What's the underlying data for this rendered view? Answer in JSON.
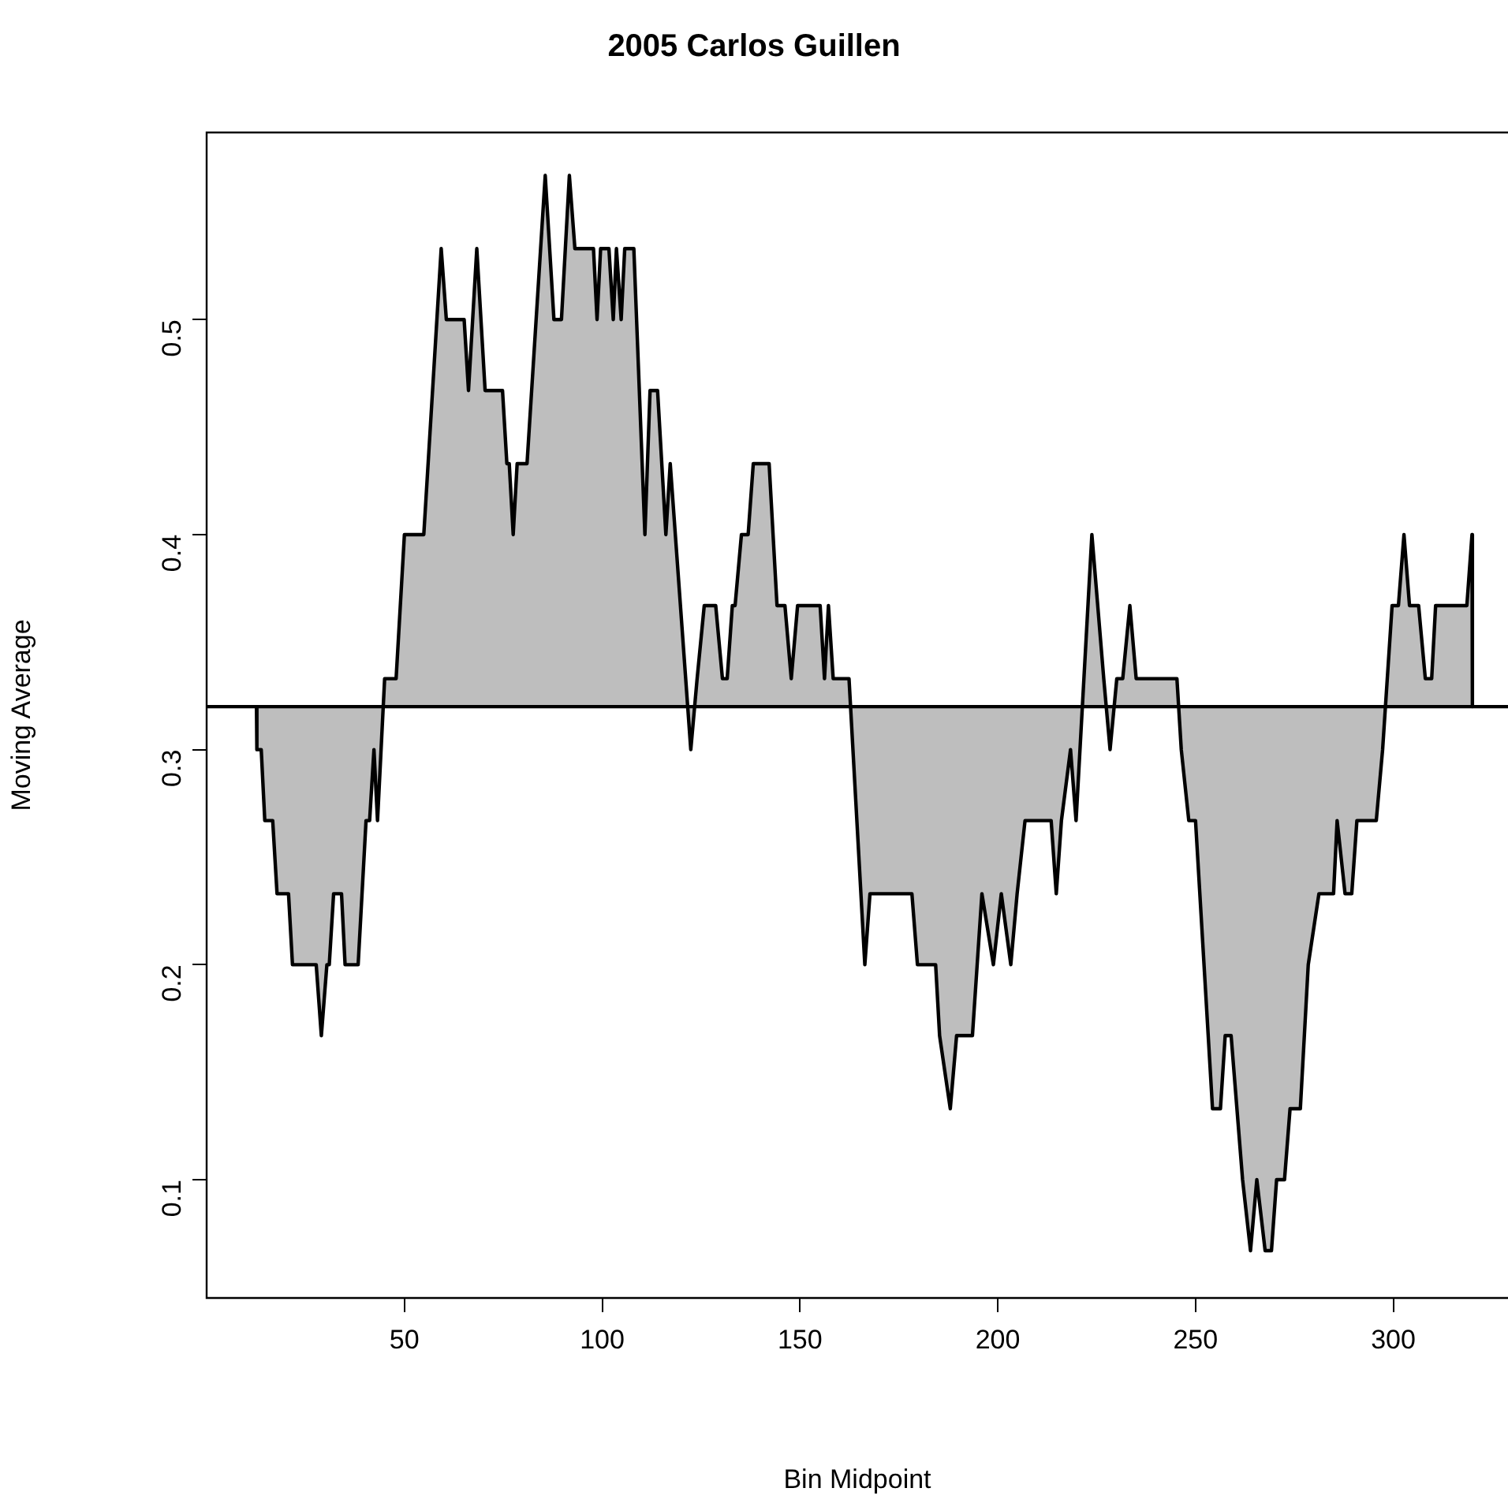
{
  "chart_data": {
    "type": "area",
    "title": "2005 Carlos Guillen",
    "xlabel": "Bin Midpoint",
    "ylabel": "Moving Average",
    "xlim": [
      0,
      329
    ],
    "ylim": [
      0.045,
      0.587
    ],
    "xticks": [
      50,
      100,
      150,
      200,
      250,
      300
    ],
    "yticks": [
      0.1,
      0.2,
      0.3,
      0.4,
      0.5
    ],
    "grid": false,
    "legend": false,
    "marker": "none",
    "line_style": "solid",
    "ref_lines": [
      {
        "axis": "y",
        "value": 0.32,
        "color": "#000000"
      }
    ],
    "series": [
      {
        "color": "#bebebe",
        "x": [
          12.6,
          12.7,
          13.8,
          14.7,
          16.7,
          17.8,
          20.7,
          21.7,
          27.7,
          29.0,
          30.4,
          31.0,
          32.1,
          34.1,
          35.0,
          38.3,
          40.3,
          41.2,
          42.3,
          43.2,
          45.0,
          47.9,
          50.0,
          54.9,
          59.3,
          60.6,
          65.1,
          66.2,
          68.3,
          70.4,
          74.8,
          75.9,
          76.5,
          77.5,
          78.5,
          81.0,
          85.6,
          87.8,
          89.7,
          91.7,
          93.1,
          97.8,
          98.7,
          99.6,
          101.7,
          102.8,
          103.6,
          104.8,
          105.7,
          108.0,
          110.8,
          112.1,
          114.0,
          116.1,
          117.2,
          122.4,
          124.0,
          125.8,
          128.7,
          130.4,
          131.6,
          132.9,
          133.6,
          135.2,
          136.9,
          138.2,
          142.2,
          144.2,
          146.2,
          147.8,
          149.4,
          155.1,
          156.2,
          157.2,
          158.4,
          162.4,
          166.4,
          167.7,
          178.3,
          179.7,
          184.3,
          185.3,
          188.0,
          189.6,
          193.6,
          196.0,
          198.9,
          200.9,
          203.3,
          204.9,
          206.9,
          213.5,
          214.8,
          216.1,
          218.4,
          219.8,
          223.8,
          226.8,
          228.4,
          230.1,
          231.6,
          233.4,
          235.0,
          245.3,
          246.4,
          248.3,
          250.0,
          254.3,
          256.3,
          257.5,
          259.0,
          261.9,
          263.9,
          265.5,
          267.6,
          269.2,
          270.5,
          272.5,
          273.9,
          276.5,
          278.5,
          281.2,
          284.9,
          285.8,
          287.8,
          289.5,
          290.8,
          295.7,
          297.3,
          299.7,
          301.3,
          302.7,
          304.1,
          306.4,
          308.1,
          309.7,
          310.7,
          318.6,
          319.9,
          320.0
        ],
        "values": [
          0.32,
          0.3,
          0.3,
          0.267,
          0.267,
          0.233,
          0.233,
          0.2,
          0.2,
          0.167,
          0.2,
          0.2,
          0.233,
          0.233,
          0.2,
          0.2,
          0.267,
          0.267,
          0.3,
          0.267,
          0.333,
          0.333,
          0.4,
          0.4,
          0.533,
          0.5,
          0.5,
          0.467,
          0.533,
          0.467,
          0.467,
          0.433,
          0.433,
          0.4,
          0.433,
          0.433,
          0.567,
          0.5,
          0.5,
          0.567,
          0.533,
          0.533,
          0.5,
          0.533,
          0.533,
          0.5,
          0.533,
          0.5,
          0.533,
          0.533,
          0.4,
          0.467,
          0.467,
          0.4,
          0.433,
          0.3,
          0.333,
          0.367,
          0.367,
          0.333,
          0.333,
          0.367,
          0.367,
          0.4,
          0.4,
          0.433,
          0.433,
          0.367,
          0.367,
          0.333,
          0.367,
          0.367,
          0.333,
          0.367,
          0.333,
          0.333,
          0.2,
          0.233,
          0.233,
          0.2,
          0.2,
          0.167,
          0.133,
          0.167,
          0.167,
          0.233,
          0.2,
          0.233,
          0.2,
          0.233,
          0.267,
          0.267,
          0.233,
          0.267,
          0.3,
          0.267,
          0.4,
          0.333,
          0.3,
          0.333,
          0.333,
          0.367,
          0.333,
          0.333,
          0.3,
          0.267,
          0.267,
          0.133,
          0.133,
          0.167,
          0.167,
          0.1,
          0.067,
          0.1,
          0.067,
          0.067,
          0.1,
          0.1,
          0.133,
          0.133,
          0.2,
          0.233,
          0.233,
          0.267,
          0.233,
          0.233,
          0.267,
          0.267,
          0.3,
          0.367,
          0.367,
          0.4,
          0.367,
          0.367,
          0.333,
          0.333,
          0.367,
          0.367,
          0.4,
          0.32
        ]
      }
    ]
  }
}
